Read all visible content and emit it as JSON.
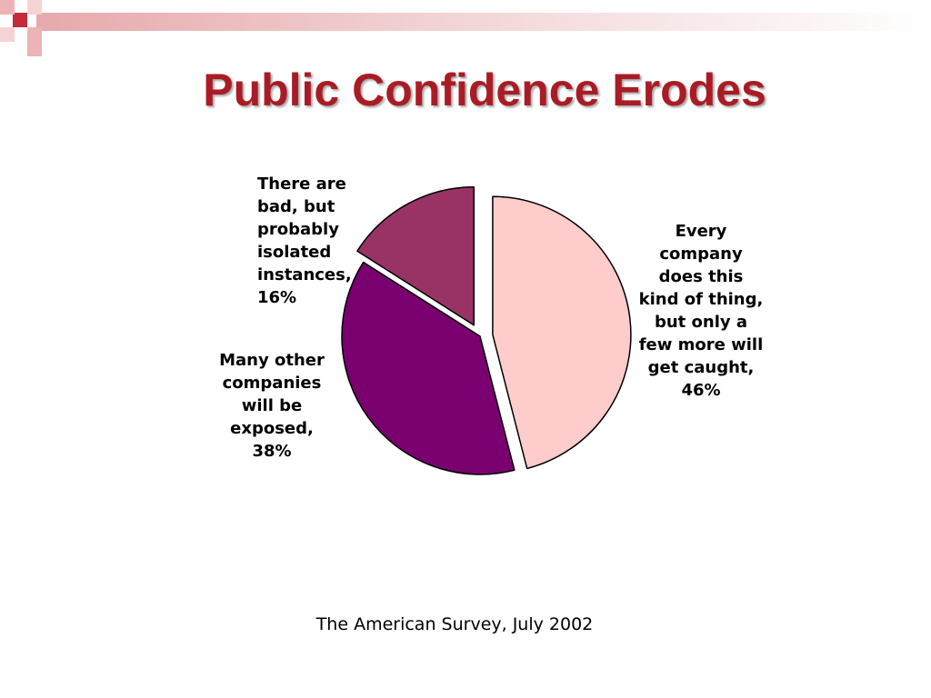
{
  "slide": {
    "title": "Public Confidence Erodes",
    "source": "The American Survey, July 2002"
  },
  "colors": {
    "title": "#a91c25",
    "accent_dark": "#c42c3c",
    "accent_light": "#eeb3b6"
  },
  "chart_data": {
    "type": "pie",
    "title": "",
    "slices": [
      {
        "label": "Every company does this kind of thing, but only a few more will get caught",
        "value": 46,
        "display": "Every\ncompany\ndoes this\nkind of thing,\nbut only a\nfew more will\nget caught,\n46%",
        "color": "#ffcccc",
        "exploded": true
      },
      {
        "label": "Many other companies will be exposed",
        "value": 38,
        "display": "Many other\ncompanies\nwill be\nexposed,\n38%",
        "color": "#7a006f",
        "exploded": false
      },
      {
        "label": "There are bad, but probably isolated instances",
        "value": 16,
        "display": "There are\nbad, but\nprobably\nisolated\ninstances,\n16%",
        "color": "#993366",
        "exploded": true
      }
    ],
    "start_angle": "12 o'clock",
    "direction": "clockwise",
    "legend": "none"
  }
}
